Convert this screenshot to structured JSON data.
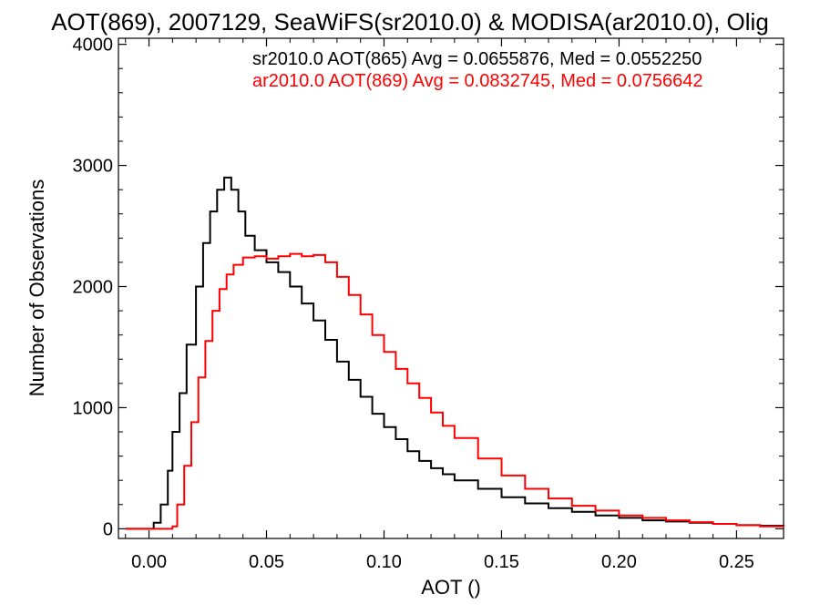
{
  "chart_data": {
    "type": "histogram-step",
    "title": "AOT(869), 2007129, SeaWiFS(sr2010.0) & MODISA(ar2010.0), Olig",
    "xlabel": "AOT ()",
    "ylabel": "Number of Observations",
    "xlim": [
      -0.013,
      0.27
    ],
    "ylim": [
      -80,
      4050
    ],
    "xticks": [
      0.0,
      0.05,
      0.1,
      0.15,
      0.2,
      0.25
    ],
    "xtick_labels": [
      "0.00",
      "0.05",
      "0.10",
      "0.15",
      "0.20",
      "0.25"
    ],
    "yticks": [
      0,
      1000,
      2000,
      3000,
      4000
    ],
    "ytick_labels": [
      "0",
      "1000",
      "2000",
      "3000",
      "4000"
    ],
    "grid": false,
    "legend_position": "top-right",
    "series": [
      {
        "name": "sr2010.0 AOT(865) Avg = 0.0655876, Med = 0.0552250",
        "color": "#000000",
        "x": [
          -0.01,
          0.0,
          0.002,
          0.005,
          0.008,
          0.01,
          0.013,
          0.016,
          0.02,
          0.023,
          0.026,
          0.029,
          0.032,
          0.035,
          0.038,
          0.041,
          0.045,
          0.05,
          0.055,
          0.06,
          0.065,
          0.07,
          0.075,
          0.08,
          0.085,
          0.09,
          0.095,
          0.1,
          0.105,
          0.11,
          0.115,
          0.12,
          0.125,
          0.13,
          0.14,
          0.15,
          0.16,
          0.17,
          0.18,
          0.19,
          0.2,
          0.21,
          0.22,
          0.23,
          0.24,
          0.25,
          0.26,
          0.27
        ],
        "y": [
          0,
          0,
          50,
          200,
          480,
          800,
          1120,
          1520,
          2000,
          2360,
          2620,
          2800,
          2900,
          2800,
          2620,
          2420,
          2300,
          2200,
          2120,
          2000,
          1860,
          1720,
          1560,
          1380,
          1230,
          1090,
          950,
          840,
          740,
          640,
          560,
          500,
          450,
          400,
          330,
          260,
          210,
          170,
          140,
          110,
          90,
          70,
          60,
          50,
          40,
          30,
          25,
          15
        ]
      },
      {
        "name": "ar2010.0 AOT(869) Avg = 0.0832745, Med = 0.0756642",
        "color": "#ff0000",
        "x": [
          -0.01,
          0.008,
          0.01,
          0.012,
          0.015,
          0.018,
          0.021,
          0.024,
          0.027,
          0.03,
          0.033,
          0.036,
          0.04,
          0.045,
          0.05,
          0.055,
          0.06,
          0.065,
          0.07,
          0.075,
          0.08,
          0.085,
          0.09,
          0.095,
          0.1,
          0.105,
          0.11,
          0.115,
          0.12,
          0.125,
          0.13,
          0.14,
          0.15,
          0.16,
          0.17,
          0.18,
          0.19,
          0.2,
          0.21,
          0.22,
          0.23,
          0.24,
          0.25,
          0.26,
          0.27
        ],
        "y": [
          0,
          0,
          20,
          200,
          520,
          880,
          1250,
          1550,
          1800,
          1980,
          2100,
          2180,
          2240,
          2250,
          2230,
          2250,
          2270,
          2250,
          2260,
          2200,
          2080,
          1930,
          1770,
          1600,
          1460,
          1320,
          1200,
          1080,
          960,
          850,
          750,
          580,
          440,
          330,
          250,
          190,
          150,
          110,
          90,
          70,
          55,
          40,
          30,
          20,
          15
        ]
      }
    ]
  }
}
